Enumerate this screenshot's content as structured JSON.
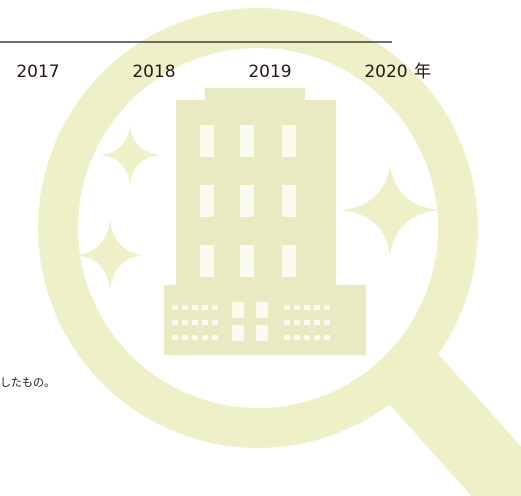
{
  "axis": {
    "labels": [
      "2017",
      "2018",
      "2019",
      "2020"
    ],
    "unit": "年"
  },
  "note": "したもの。"
}
